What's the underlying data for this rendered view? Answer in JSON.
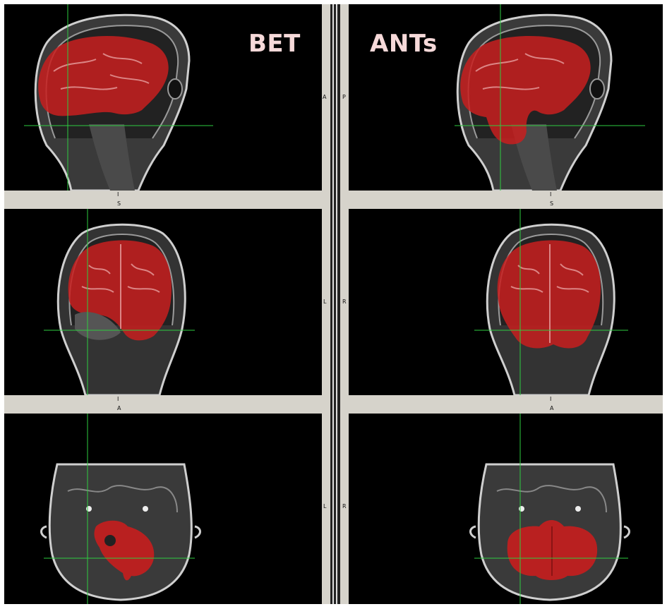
{
  "labels": {
    "left_method": "BET",
    "right_method": "ANTs"
  },
  "orientation": {
    "left_sagittal_side": "A",
    "left_sagittal_bottom": "I",
    "left_coronal_top": "S",
    "left_coronal_side": "L",
    "left_coronal_bottom": "I",
    "left_axial_top": "A",
    "left_axial_side": "L",
    "right_sagittal_side": "P",
    "right_sagittal_bottom": "I",
    "right_coronal_top": "S",
    "right_coronal_side": "R",
    "right_coronal_bottom": "I",
    "right_axial_top": "A",
    "right_axial_side": "R"
  },
  "colors": {
    "mask": "#c81e1e",
    "crosshair": "#2ecc40",
    "divider": "#d6d3cb",
    "background": "#000000"
  }
}
